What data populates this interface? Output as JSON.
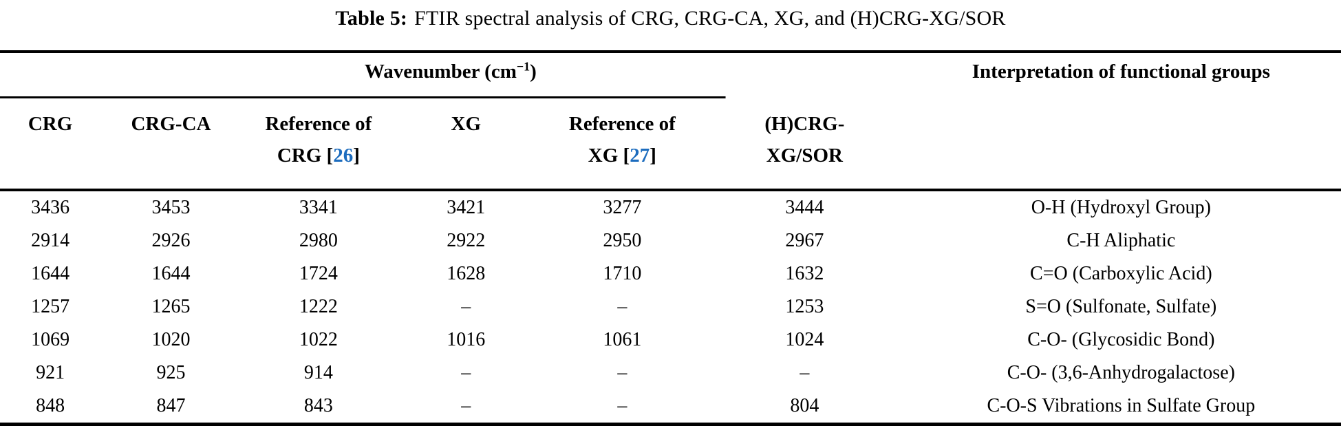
{
  "colors": {
    "text": "#000000",
    "background": "#ffffff",
    "citation": "#1c6cbe",
    "rule": "#000000"
  },
  "caption": {
    "label": "Table 5:",
    "text": "FTIR spectral analysis of CRG, CRG-CA, XG, and (H)CRG-XG/SOR"
  },
  "table": {
    "group_header": {
      "wavenumber_pre": "Wavenumber (cm",
      "wavenumber_sup": "−1",
      "wavenumber_post": ")",
      "interpretation": "Interpretation of functional groups"
    },
    "columns": [
      {
        "line1": "CRG",
        "line2": ""
      },
      {
        "line1": "CRG-CA",
        "line2": ""
      },
      {
        "line1": "Reference of",
        "line2_pre": "CRG [",
        "cite": "26",
        "line2_post": "]"
      },
      {
        "line1": "XG",
        "line2": ""
      },
      {
        "line1": "Reference of",
        "line2_pre": "XG [",
        "cite": "27",
        "line2_post": "]"
      },
      {
        "line1": "(H)CRG-",
        "line2": "XG/SOR"
      }
    ],
    "rows": [
      [
        "3436",
        "3453",
        "3341",
        "3421",
        "3277",
        "3444",
        "O-H (Hydroxyl Group)"
      ],
      [
        "2914",
        "2926",
        "2980",
        "2922",
        "2950",
        "2967",
        "C-H Aliphatic"
      ],
      [
        "1644",
        "1644",
        "1724",
        "1628",
        "1710",
        "1632",
        "C=O (Carboxylic Acid)"
      ],
      [
        "1257",
        "1265",
        "1222",
        "–",
        "–",
        "1253",
        "S=O (Sulfonate, Sulfate)"
      ],
      [
        "1069",
        "1020",
        "1022",
        "1016",
        "1061",
        "1024",
        "C-O- (Glycosidic Bond)"
      ],
      [
        "921",
        "925",
        "914",
        "–",
        "–",
        "–",
        "C-O- (3,6-Anhydrogalactose)"
      ],
      [
        "848",
        "847",
        "843",
        "–",
        "–",
        "804",
        "C-O-S Vibrations in Sulfate Group"
      ]
    ]
  }
}
